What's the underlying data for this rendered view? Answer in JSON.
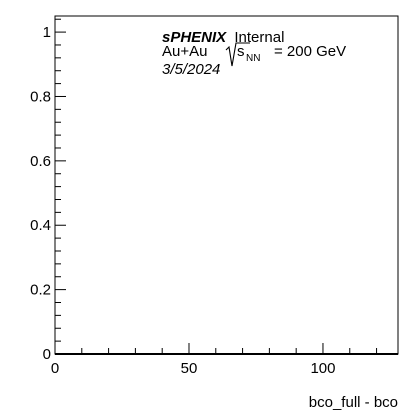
{
  "chart_data": {
    "type": "line",
    "xlabel": "bco_full - bco",
    "ylabel": "",
    "xlim": [
      0,
      128
    ],
    "ylim": [
      0,
      1.05
    ],
    "x_ticks": [
      "0",
      "50",
      "100"
    ],
    "y_ticks": [
      "0",
      "0.2",
      "0.4",
      "0.6",
      "0.8",
      "1"
    ],
    "series": [],
    "grid": false,
    "annotations": {
      "experiment": "sPHENIX",
      "status": "Internal",
      "collision": "Au+Au",
      "energy_symbol": "s",
      "energy_subscript": "NN",
      "energy_value": "= 200 GeV",
      "date": "3/5/2024"
    }
  }
}
